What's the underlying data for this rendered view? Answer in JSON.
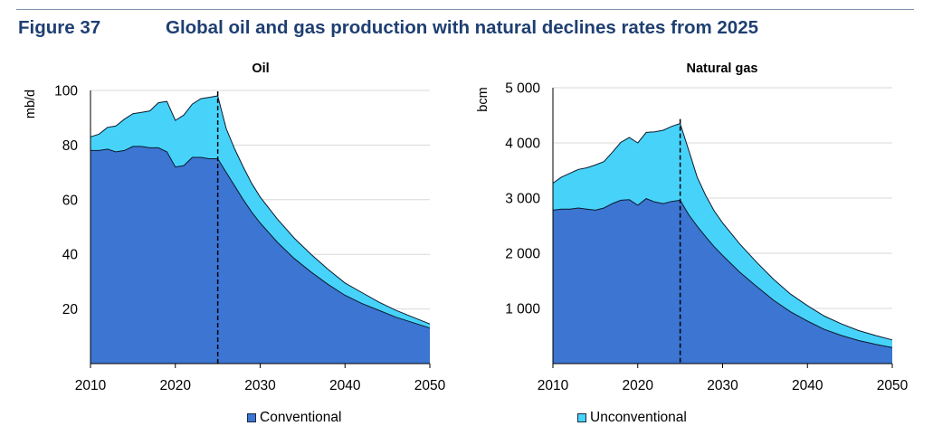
{
  "figure": {
    "number": "Figure 37",
    "title": "Global oil and gas production with natural declines rates from 2025"
  },
  "colors": {
    "conventional": "#3c75d2",
    "unconventional": "#47d3f9",
    "outline": "#0c1a2e",
    "grid": "#d9d9d9"
  },
  "legend": {
    "conventional": "Conventional",
    "unconventional": "Unconventional"
  },
  "chart_data": [
    {
      "type": "area",
      "title": "Oil",
      "ylabel": "mb/d",
      "xlim": [
        2010,
        2050
      ],
      "ylim": [
        0,
        100
      ],
      "xticks": [
        "2010",
        "2020",
        "2030",
        "2040",
        "2050"
      ],
      "yticks": [
        "20",
        "40",
        "60",
        "80",
        "100"
      ],
      "reference_year": 2025,
      "x": [
        2010,
        2011,
        2012,
        2013,
        2014,
        2015,
        2016,
        2017,
        2018,
        2019,
        2020,
        2021,
        2022,
        2023,
        2024,
        2025,
        2026,
        2027,
        2028,
        2029,
        2030,
        2032,
        2034,
        2036,
        2038,
        2040,
        2042,
        2044,
        2046,
        2048,
        2050
      ],
      "series": [
        {
          "name": "Conventional",
          "values": [
            78,
            78,
            78.5,
            77.5,
            78,
            79.5,
            79.5,
            79,
            79,
            77.5,
            72,
            72.5,
            75.5,
            75.5,
            75,
            75,
            70,
            65,
            60,
            55.5,
            51.5,
            44.5,
            38.5,
            33.5,
            29,
            25,
            22,
            19.5,
            17,
            15,
            13
          ]
        },
        {
          "name": "Unconventional",
          "values": [
            5,
            6,
            8,
            9.5,
            11.5,
            12,
            12.5,
            13.5,
            16.5,
            18.5,
            17,
            18.5,
            19.5,
            21.5,
            22.5,
            23,
            16,
            13.5,
            12,
            10.5,
            9.5,
            8.5,
            7.5,
            6.5,
            5.5,
            4.5,
            4,
            3,
            2.5,
            2,
            1.5
          ]
        }
      ]
    },
    {
      "type": "area",
      "title": "Natural gas",
      "ylabel": "bcm",
      "xlim": [
        2010,
        2050
      ],
      "ylim": [
        0,
        5000
      ],
      "xticks": [
        "2010",
        "2020",
        "2030",
        "2040",
        "2050"
      ],
      "yticks": [
        "1 000",
        "2 000",
        "3 000",
        "4 000",
        "5 000"
      ],
      "reference_year": 2025,
      "x": [
        2010,
        2011,
        2012,
        2013,
        2014,
        2015,
        2016,
        2017,
        2018,
        2019,
        2020,
        2021,
        2022,
        2023,
        2024,
        2025,
        2026,
        2027,
        2028,
        2029,
        2030,
        2032,
        2034,
        2036,
        2038,
        2040,
        2042,
        2044,
        2046,
        2048,
        2050
      ],
      "series": [
        {
          "name": "Conventional",
          "values": [
            2780,
            2800,
            2800,
            2820,
            2800,
            2780,
            2820,
            2900,
            2960,
            2970,
            2870,
            2990,
            2930,
            2900,
            2940,
            2960,
            2700,
            2490,
            2300,
            2120,
            1960,
            1660,
            1400,
            1150,
            940,
            770,
            620,
            510,
            420,
            350,
            290
          ]
        },
        {
          "name": "Unconventional",
          "values": [
            490,
            580,
            650,
            700,
            750,
            820,
            840,
            930,
            1050,
            1130,
            1130,
            1200,
            1270,
            1330,
            1360,
            1390,
            1170,
            890,
            750,
            650,
            590,
            510,
            440,
            380,
            320,
            280,
            240,
            210,
            180,
            160,
            140
          ]
        }
      ]
    }
  ]
}
